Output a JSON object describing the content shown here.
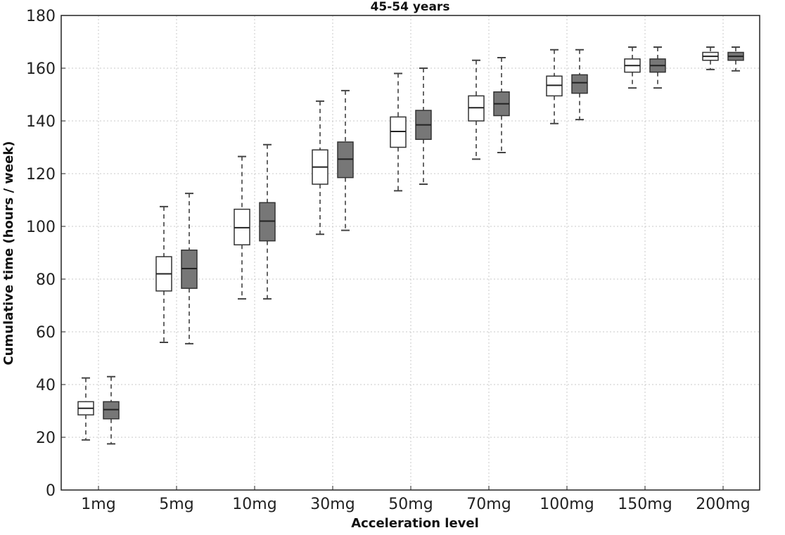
{
  "chart_data": {
    "type": "box",
    "title": "45-54 years",
    "xlabel": "Acceleration level",
    "ylabel": "Cumulative time (hours / week)",
    "ylim": [
      0,
      180
    ],
    "yticks": [
      0,
      20,
      40,
      60,
      80,
      100,
      120,
      140,
      160,
      180
    ],
    "grid": true,
    "categories": [
      "1mg",
      "5mg",
      "10mg",
      "30mg",
      "50mg",
      "70mg",
      "100mg",
      "150mg",
      "200mg"
    ],
    "series": [
      {
        "fill": "#ffffff",
        "boxes": [
          {
            "whislo": 19,
            "q1": 28.5,
            "med": 31,
            "q3": 33.5,
            "whishi": 42.5
          },
          {
            "whislo": 56,
            "q1": 75.5,
            "med": 82,
            "q3": 88.5,
            "whishi": 107.5
          },
          {
            "whislo": 72.5,
            "q1": 93,
            "med": 99.5,
            "q3": 106.5,
            "whishi": 126.5
          },
          {
            "whislo": 97,
            "q1": 116,
            "med": 122.5,
            "q3": 129,
            "whishi": 147.5
          },
          {
            "whislo": 113.5,
            "q1": 130,
            "med": 136,
            "q3": 141.5,
            "whishi": 158
          },
          {
            "whislo": 125.5,
            "q1": 140,
            "med": 145,
            "q3": 149.5,
            "whishi": 163
          },
          {
            "whislo": 139,
            "q1": 149.5,
            "med": 153.5,
            "q3": 157,
            "whishi": 167
          },
          {
            "whislo": 152.5,
            "q1": 158.5,
            "med": 161,
            "q3": 163.5,
            "whishi": 168
          },
          {
            "whislo": 159.5,
            "q1": 163,
            "med": 164.5,
            "q3": 166,
            "whishi": 168
          }
        ]
      },
      {
        "fill": "#777777",
        "boxes": [
          {
            "whislo": 17.5,
            "q1": 27,
            "med": 30.5,
            "q3": 33.5,
            "whishi": 43
          },
          {
            "whislo": 55.5,
            "q1": 76.5,
            "med": 84,
            "q3": 91,
            "whishi": 112.5
          },
          {
            "whislo": 72.5,
            "q1": 94.5,
            "med": 102,
            "q3": 109,
            "whishi": 131
          },
          {
            "whislo": 98.5,
            "q1": 118.5,
            "med": 125.5,
            "q3": 132,
            "whishi": 151.5
          },
          {
            "whislo": 116,
            "q1": 133,
            "med": 138.5,
            "q3": 144,
            "whishi": 160
          },
          {
            "whislo": 128,
            "q1": 142,
            "med": 146.5,
            "q3": 151,
            "whishi": 164
          },
          {
            "whislo": 140.5,
            "q1": 150.5,
            "med": 154.5,
            "q3": 157.5,
            "whishi": 167
          },
          {
            "whislo": 152.5,
            "q1": 158.5,
            "med": 161,
            "q3": 163.5,
            "whishi": 168
          },
          {
            "whislo": 159,
            "q1": 163,
            "med": 164.5,
            "q3": 166,
            "whishi": 168
          }
        ]
      }
    ]
  }
}
